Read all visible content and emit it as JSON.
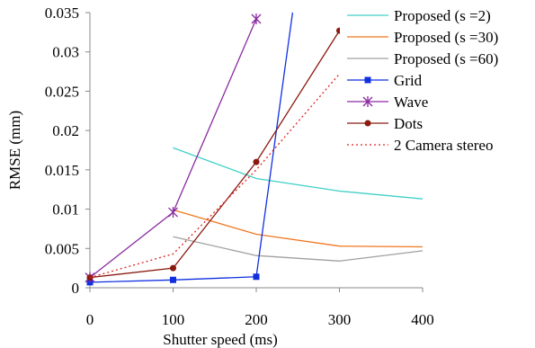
{
  "chart_data": {
    "type": "line",
    "xlabel": "Shutter speed (ms)",
    "ylabel": "RMSE (mm)",
    "xlim": [
      0,
      400
    ],
    "ylim": [
      0,
      0.035
    ],
    "x_ticks": [
      "0",
      "100",
      "200",
      "300",
      "400"
    ],
    "y_ticks": [
      "0",
      "0.005",
      "0.01",
      "0.015",
      "0.02",
      "0.025",
      "0.03",
      "0.035"
    ],
    "grid": false,
    "legend_position": "right",
    "series": [
      {
        "name": "Proposed (s =2)",
        "color": "#40d0c8",
        "style": "solid",
        "marker": "none",
        "x": [
          100,
          200,
          300,
          400
        ],
        "y": [
          0.0178,
          0.0139,
          0.0123,
          0.0113
        ]
      },
      {
        "name": "Proposed (s =30)",
        "color": "#f07820",
        "style": "solid",
        "marker": "none",
        "x": [
          100,
          200,
          300,
          400
        ],
        "y": [
          0.0099,
          0.0068,
          0.0053,
          0.0052
        ]
      },
      {
        "name": "Proposed (s =60)",
        "color": "#a0a0a0",
        "style": "solid",
        "marker": "none",
        "x": [
          100,
          200,
          300,
          400
        ],
        "y": [
          0.0065,
          0.0041,
          0.0034,
          0.0047
        ]
      },
      {
        "name": "Grid",
        "color": "#1030e0",
        "style": "solid",
        "marker": "square",
        "x": [
          0,
          100,
          200,
          245
        ],
        "y": [
          0.0007,
          0.001,
          0.0014,
          0.036
        ]
      },
      {
        "name": "Wave",
        "color": "#8a2aa0",
        "style": "solid",
        "marker": "x",
        "x": [
          0,
          100,
          200
        ],
        "y": [
          0.0013,
          0.0096,
          0.0342
        ]
      },
      {
        "name": "Dots",
        "color": "#8a1a10",
        "style": "solid",
        "marker": "circle",
        "x": [
          0,
          100,
          200,
          300
        ],
        "y": [
          0.0013,
          0.0025,
          0.016,
          0.0327
        ]
      },
      {
        "name": "2 Camera stereo",
        "color": "#e02020",
        "style": "dotted",
        "marker": "none",
        "x": [
          0,
          100,
          200,
          300
        ],
        "y": [
          0.0013,
          0.0043,
          0.015,
          0.0272
        ]
      }
    ]
  }
}
